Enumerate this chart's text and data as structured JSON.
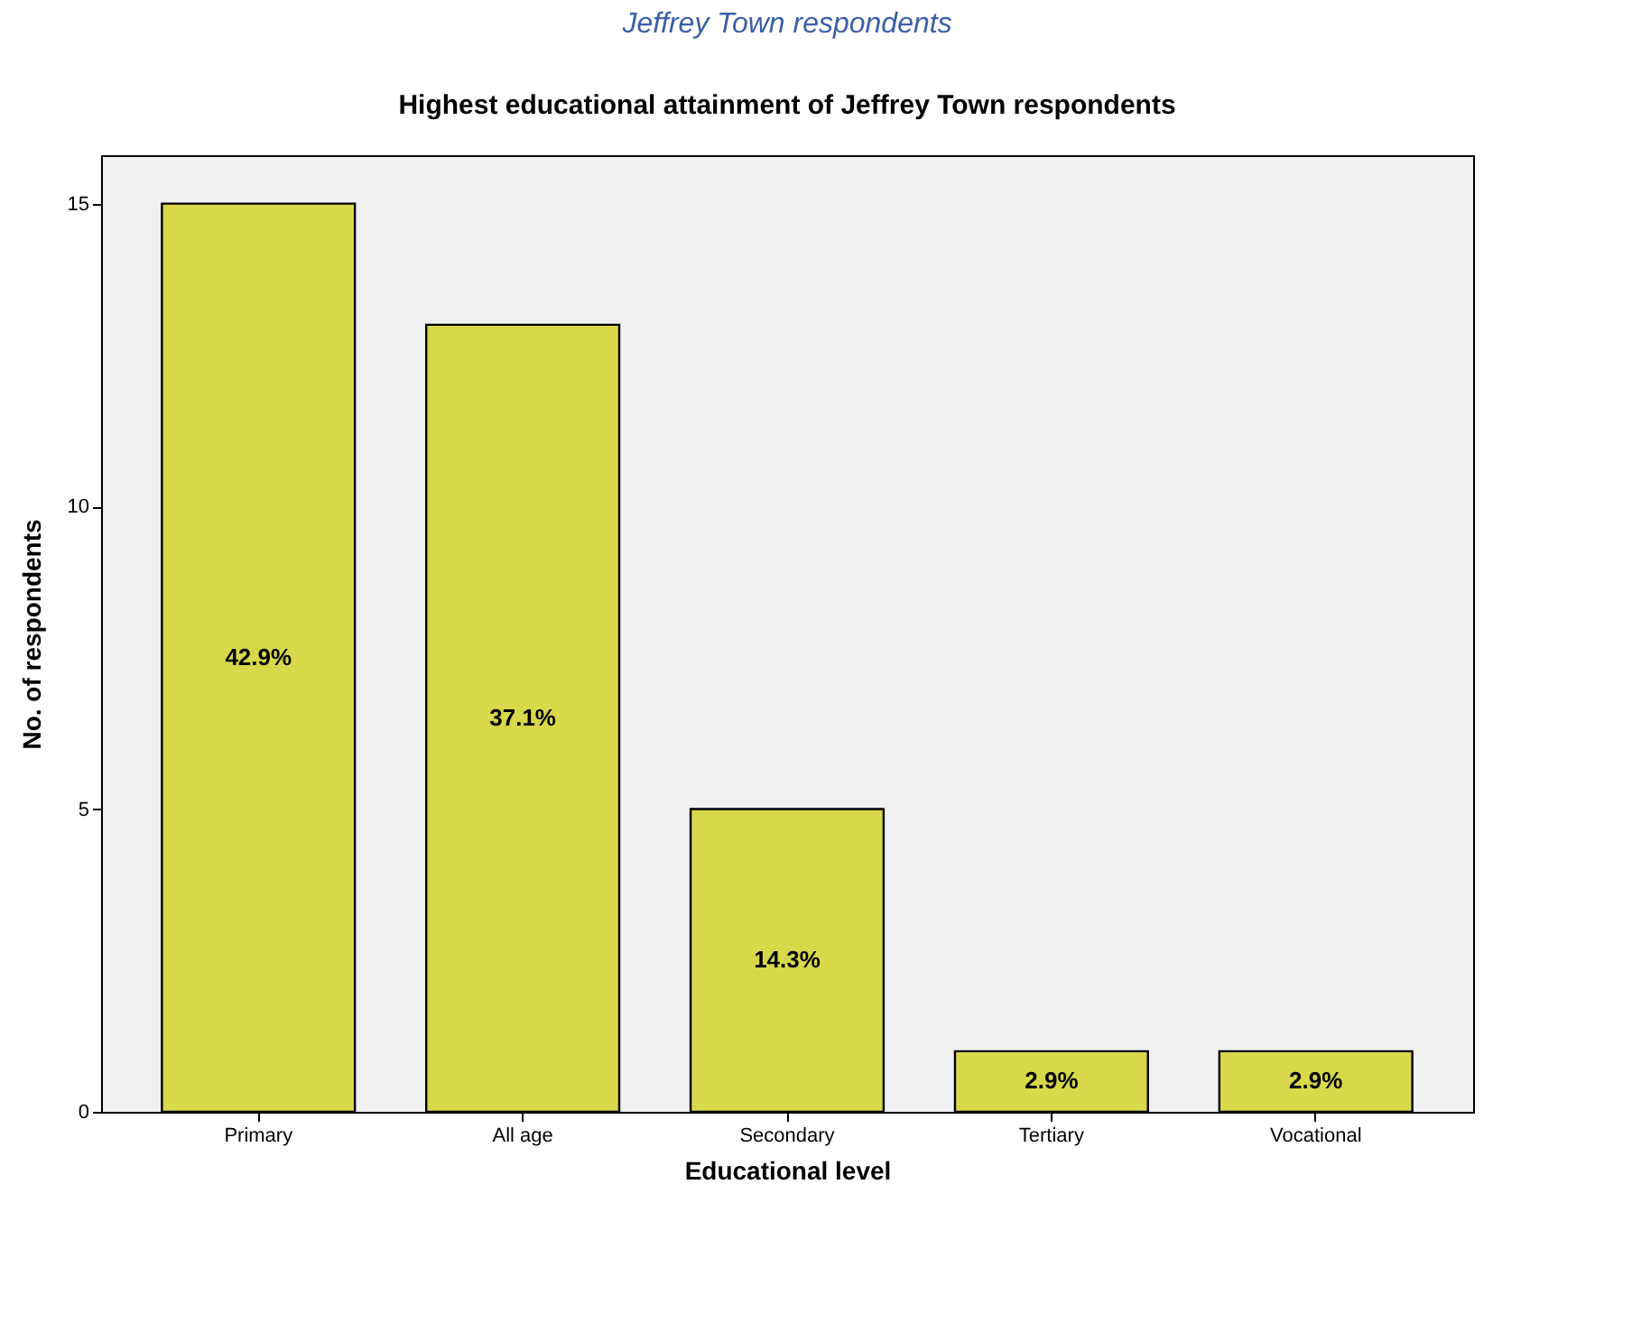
{
  "chart_data": {
    "type": "bar",
    "title": "Highest educational attainment of Jeffrey Town respondents",
    "xlabel": "Educational level",
    "ylabel": "No. of respondents",
    "categories": [
      "Primary",
      "All age",
      "Secondary",
      "Tertiary",
      "Vocational"
    ],
    "values": [
      15,
      13,
      5,
      1,
      1
    ],
    "color": "#d8d84a",
    "ylim": [
      0,
      15.8
    ],
    "yticks": [
      0,
      5,
      10,
      15
    ],
    "grid": false,
    "annotations": [
      "Jeffrey Town respondents",
      "42.9%",
      "37.1%",
      "14.3%",
      "2.9%",
      "2.9%"
    ]
  }
}
